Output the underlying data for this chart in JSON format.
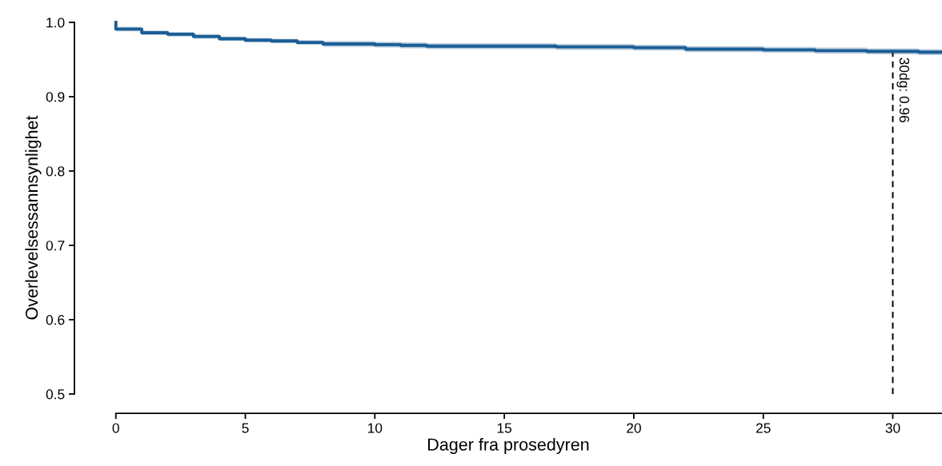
{
  "chart_data": {
    "type": "step",
    "xlabel": "Dager fra prosedyren",
    "ylabel": "Overlevelsessannsynlighet",
    "series": [
      {
        "color": "#1b5e96",
        "x": [
          0,
          0,
          1,
          2,
          3,
          4,
          5,
          6,
          7,
          8,
          10,
          11,
          12,
          17,
          20,
          22,
          25,
          27,
          29,
          31,
          31.9
        ],
        "values": [
          1.0,
          0.991,
          0.986,
          0.984,
          0.981,
          0.978,
          0.976,
          0.975,
          0.973,
          0.971,
          0.97,
          0.969,
          0.968,
          0.967,
          0.966,
          0.964,
          0.963,
          0.962,
          0.961,
          0.96,
          0.96
        ],
        "lower": [
          1.0,
          0.988,
          0.983,
          0.981,
          0.978,
          0.975,
          0.973,
          0.972,
          0.97,
          0.967,
          0.966,
          0.965,
          0.964,
          0.963,
          0.962,
          0.96,
          0.959,
          0.958,
          0.957,
          0.956,
          0.956
        ],
        "upper": [
          1.0,
          0.994,
          0.989,
          0.987,
          0.984,
          0.981,
          0.979,
          0.978,
          0.976,
          0.975,
          0.974,
          0.973,
          0.972,
          0.971,
          0.97,
          0.968,
          0.967,
          0.966,
          0.965,
          0.964,
          0.964
        ]
      }
    ],
    "ref_lines": [
      {
        "axis": "x",
        "value": 30,
        "label": "30dg: 0.96",
        "color": "#000000",
        "line_style": "dashed"
      }
    ],
    "xlim": [
      -1.6,
      31.9
    ],
    "ylim": [
      0.474,
      1.0
    ],
    "xticks": [
      0,
      5,
      10,
      15,
      20,
      25,
      30
    ],
    "yticks": [
      0.5,
      0.6,
      0.7,
      0.8,
      0.9,
      {
        "value": 1.0,
        "label": "1.0"
      }
    ],
    "grid": false
  }
}
